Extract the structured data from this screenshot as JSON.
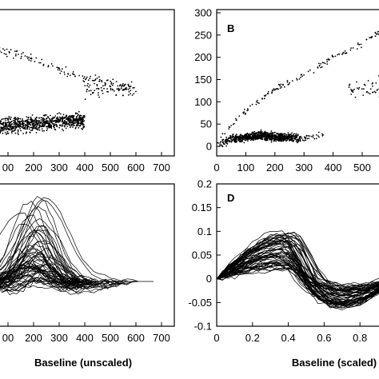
{
  "chart_data": [
    {
      "type": "scatter",
      "panel_label": "",
      "xlabel": "",
      "xlim": [
        0,
        700
      ],
      "x_ticks": [
        "00",
        "200",
        "300",
        "400",
        "500",
        "600",
        "700"
      ],
      "y_ticks": [],
      "main_cloud": {
        "x_range": [
          0,
          400
        ],
        "y_center": "mid-low",
        "density": "dense"
      },
      "upper_trend": [
        [
          10,
          0.3
        ],
        [
          60,
          0.28
        ],
        [
          120,
          0.3
        ],
        [
          200,
          0.34
        ],
        [
          300,
          0.41
        ],
        [
          400,
          0.47
        ],
        [
          500,
          0.5
        ],
        [
          580,
          0.54
        ]
      ],
      "right_cluster": {
        "x_range": [
          400,
          600
        ],
        "y_level": 0.55
      }
    },
    {
      "type": "scatter",
      "panel_label": "B",
      "xlabel": "",
      "xlim": [
        0,
        700
      ],
      "ylim": [
        0,
        300
      ],
      "x_ticks": [
        0,
        100,
        200,
        300,
        400,
        500,
        600
      ],
      "y_ticks": [
        0,
        50,
        100,
        150,
        200,
        250,
        300
      ],
      "cloud": [
        [
          0,
          5
        ],
        [
          50,
          15
        ],
        [
          100,
          20
        ],
        [
          150,
          25
        ],
        [
          200,
          20
        ],
        [
          300,
          20
        ],
        [
          400,
          25
        ]
      ],
      "upper_trend": [
        [
          0,
          10
        ],
        [
          50,
          45
        ],
        [
          100,
          80
        ],
        [
          200,
          130
        ],
        [
          300,
          160
        ],
        [
          400,
          200
        ],
        [
          500,
          230
        ],
        [
          560,
          258
        ]
      ],
      "right_cluster": {
        "x_range": [
          440,
          620
        ],
        "y_level": 130
      }
    },
    {
      "type": "line",
      "panel_label": "",
      "xlabel": "Baseline (unscaled)",
      "xlim": [
        0,
        700
      ],
      "x_ticks": [
        "00",
        "200",
        "300",
        "400",
        "500",
        "600",
        "700"
      ],
      "y_ticks": [],
      "series_count": 60,
      "peak_x_range": [
        150,
        260
      ],
      "end_x_range": [
        350,
        620
      ]
    },
    {
      "type": "line",
      "panel_label": "D",
      "xlabel": "Baseline (scaled)",
      "xlim": [
        0,
        1
      ],
      "ylim": [
        -0.1,
        0.2
      ],
      "x_ticks": [
        "0",
        "0.2",
        "0.4",
        "0.6",
        "0.8"
      ],
      "y_ticks": [
        "-0.1",
        "-0.05",
        "0",
        "0.05",
        "0.1",
        "0.15",
        "0.2"
      ],
      "series_count": 60,
      "peak_x": 0.4,
      "peak_range": [
        0.02,
        0.1
      ]
    }
  ]
}
